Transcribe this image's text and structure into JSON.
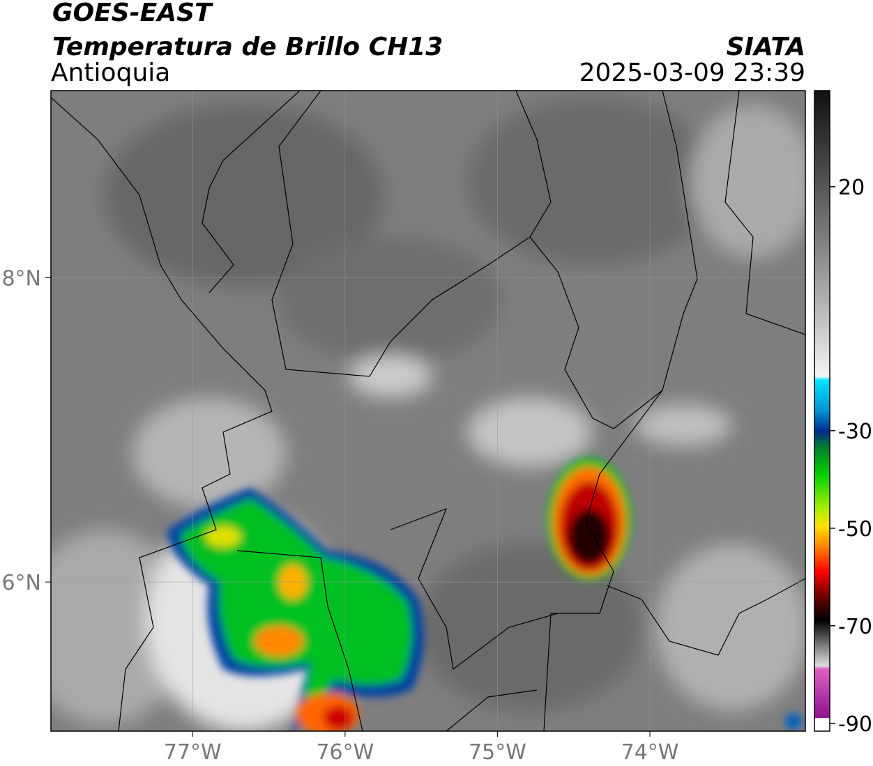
{
  "header": {
    "title": "GOES-EAST",
    "subtitle": "Temperatura de Brillo CH13",
    "region": "Antioquia",
    "source": "SIATA",
    "datetime": "2025-03-09 23:39"
  },
  "map": {
    "xlim": [
      -77.93,
      -72.98
    ],
    "ylim": [
      5.02,
      9.23
    ],
    "xticks": [
      {
        "value": -77,
        "label": "77°W"
      },
      {
        "value": -76,
        "label": "76°W"
      },
      {
        "value": -75,
        "label": "75°W"
      },
      {
        "value": -74,
        "label": "74°W"
      }
    ],
    "yticks": [
      {
        "value": 6,
        "label": "6°N"
      },
      {
        "value": 8,
        "label": "8°N"
      }
    ],
    "grid": true
  },
  "colorbar": {
    "lim": [
      -91.6,
      39.7
    ],
    "ticks": [
      20,
      -30,
      -50,
      -70,
      -90
    ]
  }
}
